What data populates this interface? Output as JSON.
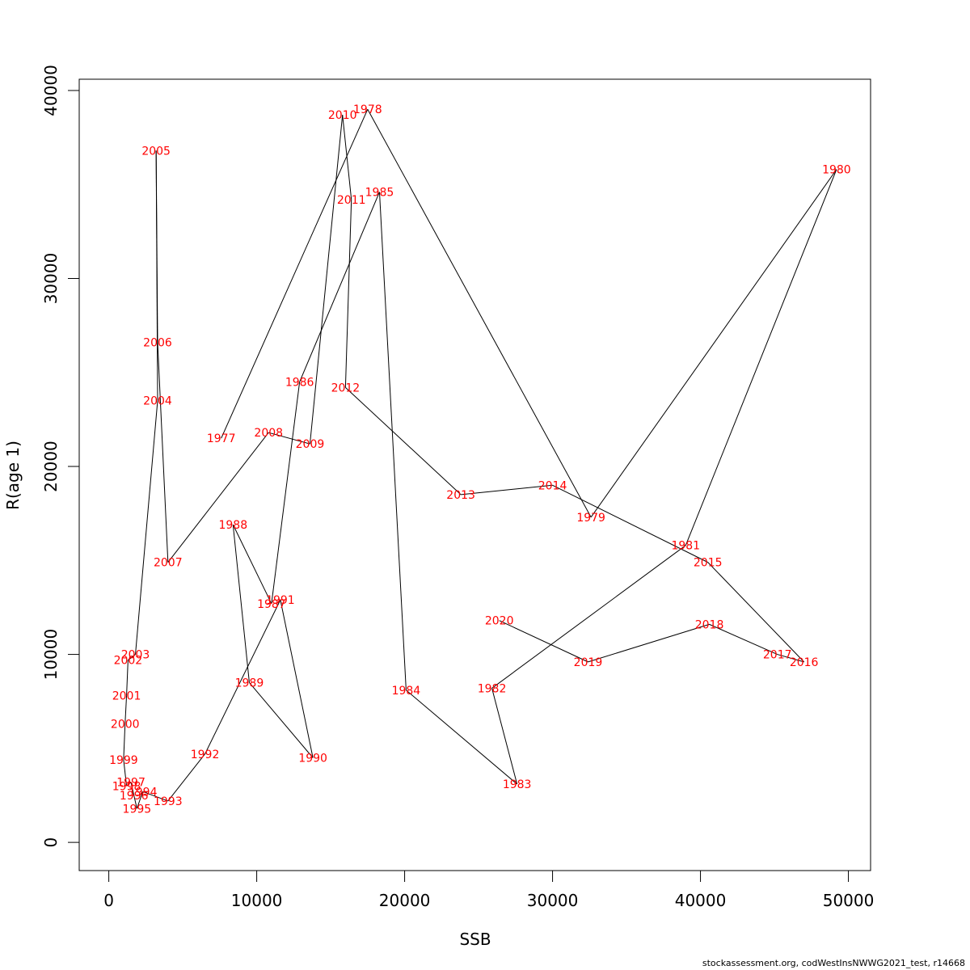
{
  "chart_data": {
    "type": "line",
    "xlabel": "SSB",
    "ylabel": "R(age 1)",
    "xlim": [
      -2000,
      51500
    ],
    "ylim": [
      -1500,
      40600
    ],
    "xticks": [
      0,
      10000,
      20000,
      30000,
      40000,
      50000
    ],
    "yticks": [
      0,
      10000,
      20000,
      30000,
      40000
    ],
    "xtick_labels": [
      "0",
      "10000",
      "20000",
      "30000",
      "40000",
      "50000"
    ],
    "ytick_labels": [
      "0",
      "10000",
      "20000",
      "30000",
      "40000"
    ],
    "line_color": "#000000",
    "label_color": "#ff0000",
    "points": [
      {
        "year": "1977",
        "x": 7600,
        "y": 21500
      },
      {
        "year": "1978",
        "x": 17500,
        "y": 39000
      },
      {
        "year": "1979",
        "x": 32600,
        "y": 17300
      },
      {
        "year": "1980",
        "x": 49200,
        "y": 35800
      },
      {
        "year": "1981",
        "x": 39000,
        "y": 15800
      },
      {
        "year": "1982",
        "x": 25900,
        "y": 8200
      },
      {
        "year": "1983",
        "x": 27600,
        "y": 3100
      },
      {
        "year": "1984",
        "x": 20100,
        "y": 8100
      },
      {
        "year": "1985",
        "x": 18300,
        "y": 34600
      },
      {
        "year": "1986",
        "x": 12900,
        "y": 24500
      },
      {
        "year": "1987",
        "x": 11000,
        "y": 12700
      },
      {
        "year": "1988",
        "x": 8400,
        "y": 16900
      },
      {
        "year": "1989",
        "x": 9500,
        "y": 8500
      },
      {
        "year": "1990",
        "x": 13800,
        "y": 4500
      },
      {
        "year": "1991",
        "x": 11600,
        "y": 12900
      },
      {
        "year": "1992",
        "x": 6500,
        "y": 4700
      },
      {
        "year": "1993",
        "x": 4000,
        "y": 2200
      },
      {
        "year": "1994",
        "x": 2300,
        "y": 2700
      },
      {
        "year": "1995",
        "x": 1900,
        "y": 1800
      },
      {
        "year": "1996",
        "x": 1700,
        "y": 2500
      },
      {
        "year": "1997",
        "x": 1500,
        "y": 3200
      },
      {
        "year": "1998",
        "x": 1200,
        "y": 3000
      },
      {
        "year": "1999",
        "x": 1000,
        "y": 4400
      },
      {
        "year": "2000",
        "x": 1100,
        "y": 6300
      },
      {
        "year": "2001",
        "x": 1200,
        "y": 7800
      },
      {
        "year": "2002",
        "x": 1300,
        "y": 9700
      },
      {
        "year": "2003",
        "x": 1800,
        "y": 10000
      },
      {
        "year": "2004",
        "x": 3300,
        "y": 23500
      },
      {
        "year": "2005",
        "x": 3200,
        "y": 36800
      },
      {
        "year": "2006",
        "x": 3300,
        "y": 26600
      },
      {
        "year": "2007",
        "x": 4000,
        "y": 14900
      },
      {
        "year": "2008",
        "x": 10800,
        "y": 21800
      },
      {
        "year": "2009",
        "x": 13600,
        "y": 21200
      },
      {
        "year": "2010",
        "x": 15800,
        "y": 38700
      },
      {
        "year": "2011",
        "x": 16400,
        "y": 34200
      },
      {
        "year": "2012",
        "x": 16000,
        "y": 24200
      },
      {
        "year": "2013",
        "x": 23800,
        "y": 18500
      },
      {
        "year": "2014",
        "x": 30000,
        "y": 19000
      },
      {
        "year": "2015",
        "x": 40500,
        "y": 14900
      },
      {
        "year": "2016",
        "x": 47000,
        "y": 9600
      },
      {
        "year": "2017",
        "x": 45200,
        "y": 10000
      },
      {
        "year": "2018",
        "x": 40600,
        "y": 11600
      },
      {
        "year": "2019",
        "x": 32400,
        "y": 9600
      },
      {
        "year": "2020",
        "x": 26400,
        "y": 11800
      }
    ]
  },
  "footer": "stockassessment.org, codWestInsNWWG2021_test, r14668"
}
